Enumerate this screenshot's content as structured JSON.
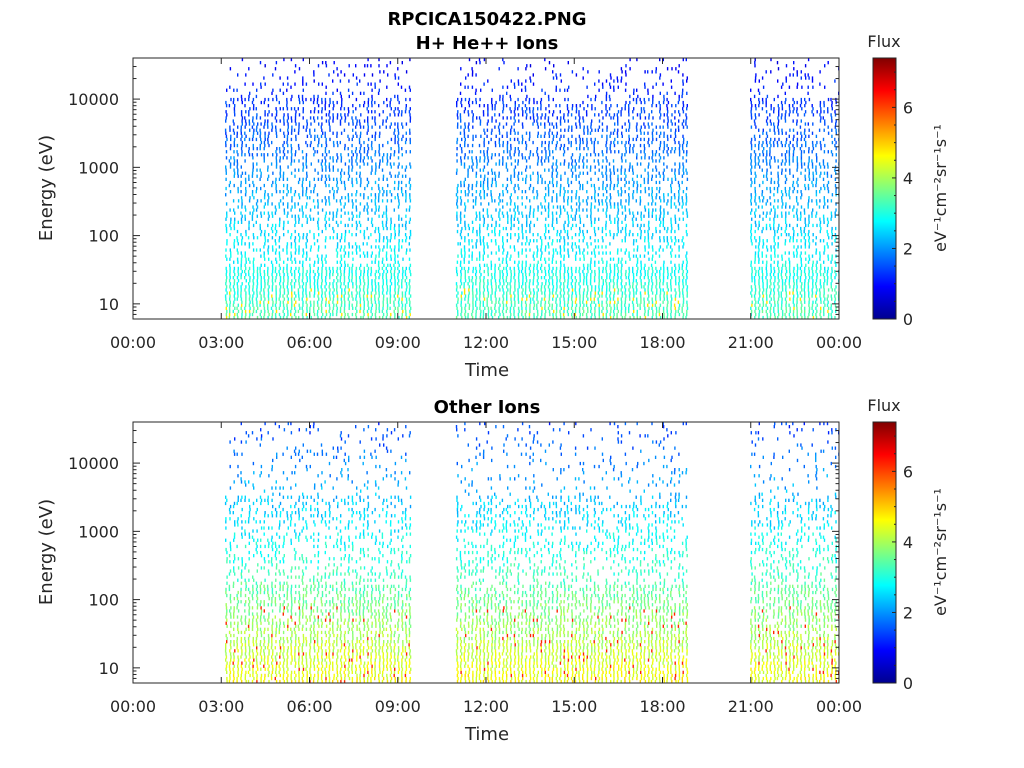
{
  "figure_title": "RPCICA150422.PNG",
  "chart_data": [
    {
      "type": "heatmap",
      "title": "H+ He++ Ions",
      "xlabel": "Time",
      "ylabel": "Energy (eV)",
      "x_ticks": [
        "00:00",
        "03:00",
        "06:00",
        "09:00",
        "12:00",
        "15:00",
        "18:00",
        "21:00",
        "00:00"
      ],
      "xlim_hours": [
        0,
        24
      ],
      "y_scale": "log",
      "ylim": [
        6,
        40000
      ],
      "y_ticks": [
        10,
        100,
        1000,
        10000
      ],
      "y_tick_labels": [
        "10",
        "100",
        "1000",
        "10000"
      ],
      "data_intervals_hours": [
        [
          3.15,
          9.5
        ],
        [
          11.0,
          18.9
        ],
        [
          21.0,
          24.0
        ]
      ],
      "colorbar": {
        "label": "Flux",
        "units": "eV⁻¹cm⁻²sr⁻¹s⁻¹",
        "range": [
          0,
          7.4
        ],
        "ticks": [
          0,
          2,
          4,
          6
        ],
        "tick_labels": [
          "0",
          "2",
          "4",
          "6"
        ],
        "colormap": "jet"
      }
    },
    {
      "type": "heatmap",
      "title": "Other Ions",
      "xlabel": "Time",
      "ylabel": "Energy (eV)",
      "x_ticks": [
        "00:00",
        "03:00",
        "06:00",
        "09:00",
        "12:00",
        "15:00",
        "18:00",
        "21:00",
        "00:00"
      ],
      "xlim_hours": [
        0,
        24
      ],
      "y_scale": "log",
      "ylim": [
        6,
        40000
      ],
      "y_ticks": [
        10,
        100,
        1000,
        10000
      ],
      "y_tick_labels": [
        "10",
        "100",
        "1000",
        "10000"
      ],
      "data_intervals_hours": [
        [
          3.15,
          9.5
        ],
        [
          11.0,
          18.9
        ],
        [
          21.0,
          24.0
        ]
      ],
      "colorbar": {
        "label": "Flux",
        "units": "eV⁻¹cm⁻²sr⁻¹s⁻¹",
        "range": [
          0,
          7.4
        ],
        "ticks": [
          0,
          2,
          4,
          6
        ],
        "tick_labels": [
          "0",
          "2",
          "4",
          "6"
        ],
        "colormap": "jet"
      }
    }
  ]
}
